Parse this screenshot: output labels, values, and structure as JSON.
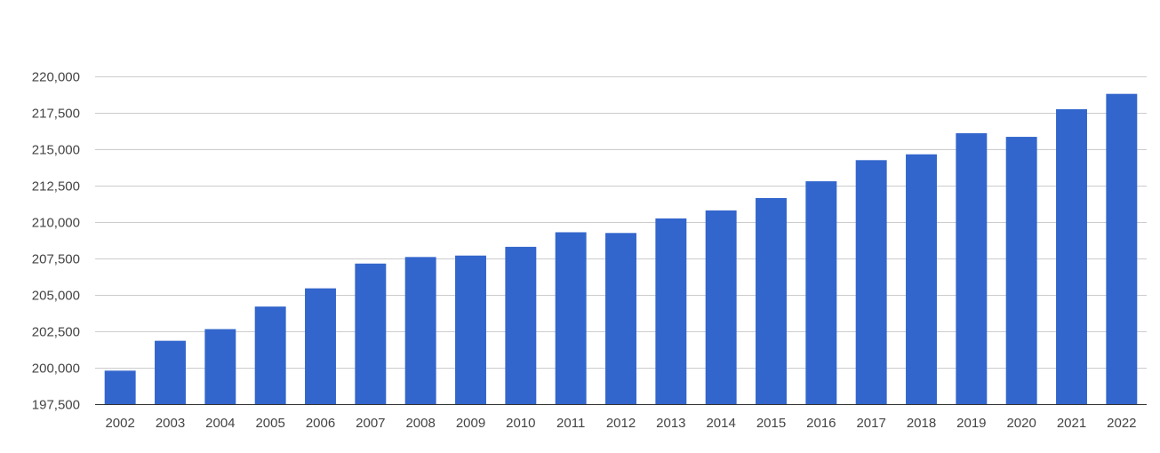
{
  "chart_data": {
    "type": "bar",
    "title": "",
    "xlabel": "",
    "ylabel": "",
    "categories": [
      "2002",
      "2003",
      "2004",
      "2005",
      "2006",
      "2007",
      "2008",
      "2009",
      "2010",
      "2011",
      "2012",
      "2013",
      "2014",
      "2015",
      "2016",
      "2017",
      "2018",
      "2019",
      "2020",
      "2021",
      "2022"
    ],
    "values": [
      199800,
      201850,
      202650,
      204200,
      205450,
      207150,
      207600,
      207700,
      208300,
      209300,
      209250,
      210250,
      210800,
      211650,
      212800,
      214250,
      214650,
      216100,
      215850,
      217750,
      218800
    ],
    "ylim": [
      197500,
      220000
    ],
    "yticks": [
      197500,
      200000,
      202500,
      205000,
      207500,
      210000,
      212500,
      215000,
      217500,
      220000
    ],
    "ytick_labels": [
      "197,500",
      "200,000",
      "202,500",
      "205,000",
      "207,500",
      "210,000",
      "212,500",
      "215,000",
      "217,500",
      "220,000"
    ],
    "bar_color": "#3366cc",
    "grid": true,
    "legend": "none"
  }
}
